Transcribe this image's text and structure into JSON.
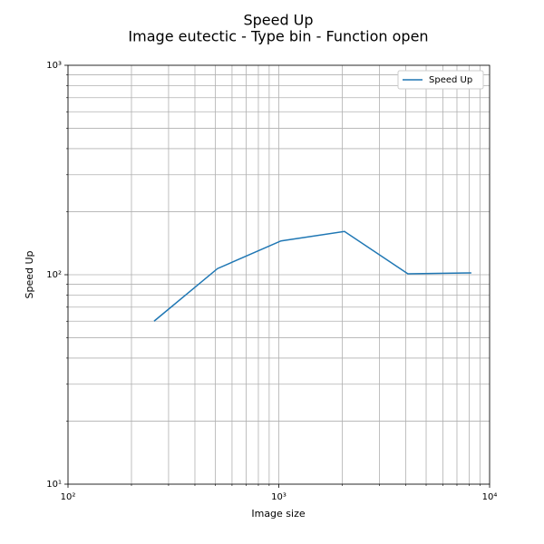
{
  "chart_data": {
    "type": "line",
    "title": "Speed Up",
    "subtitle": "Image eutectic - Type bin - Function open",
    "x_label": "Image size",
    "y_label": "Speed Up",
    "x": [
      256,
      512,
      1024,
      2048,
      4096,
      8192
    ],
    "series": [
      {
        "name": "Speed Up",
        "color": "#1f77b4",
        "values": [
          60,
          107,
          145,
          161,
          101,
          102
        ]
      }
    ],
    "x_scale": "log",
    "y_scale": "log",
    "xlim": [
      100,
      10000
    ],
    "ylim": [
      10,
      1000
    ],
    "xticks": [
      {
        "value": 100,
        "label": "10²"
      },
      {
        "value": 1000,
        "label": "10³"
      },
      {
        "value": 10000,
        "label": "10⁴"
      }
    ],
    "yticks": [
      {
        "value": 10,
        "label": "10¹"
      },
      {
        "value": 100,
        "label": "10²"
      },
      {
        "value": 1000,
        "label": "10³"
      }
    ],
    "xminorticks": [
      200,
      300,
      400,
      500,
      600,
      700,
      800,
      900,
      2000,
      3000,
      4000,
      5000,
      6000,
      7000,
      8000,
      9000
    ],
    "yminorticks": [
      20,
      30,
      40,
      50,
      60,
      70,
      80,
      90,
      200,
      300,
      400,
      500,
      600,
      700,
      800,
      900
    ],
    "grid": true,
    "legend": "upper right"
  }
}
